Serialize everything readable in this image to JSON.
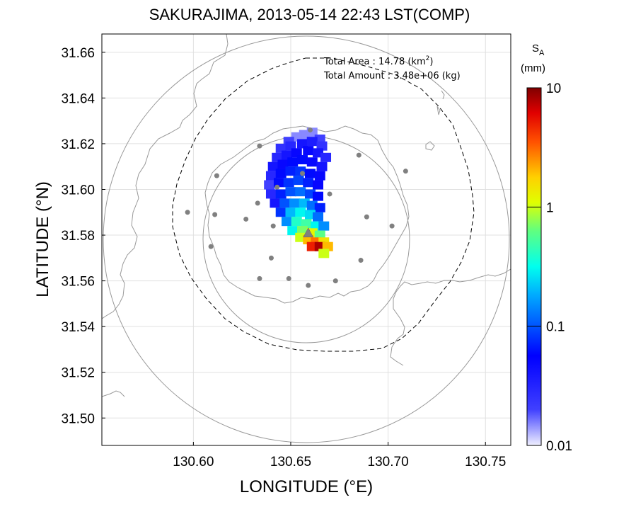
{
  "title": "SAKURAJIMA, 2013-05-14 22:43 LST(COMP)",
  "chart_data": {
    "type": "heatmap",
    "title": "SAKURAJIMA, 2013-05-14 22:43 LST(COMP)",
    "xlabel": "LONGITUDE (°E)",
    "ylabel": "LATITUDE (°N)",
    "xlim": [
      130.553,
      130.763
    ],
    "ylim": [
      31.488,
      31.668
    ],
    "x_ticks": [
      "130.60",
      "130.65",
      "130.70",
      "130.75"
    ],
    "y_ticks": [
      "31.66",
      "31.64",
      "31.62",
      "31.60",
      "31.58",
      "31.56",
      "31.54",
      "31.52",
      "31.50"
    ],
    "grid": true,
    "colorbar": {
      "label_main": "S",
      "label_sub": "A",
      "unit": "(mm)",
      "scale": "log",
      "range": [
        0.01,
        10
      ],
      "ticks": [
        "10",
        "1",
        "0.1",
        "0.01"
      ]
    },
    "annotations": {
      "area_label": "Total Area   : 14.78 (km",
      "area_sup": "2",
      "area_close": ")",
      "amount_label": "Total Amount : 3.48e+06 (kg)"
    },
    "vent": {
      "lon": 130.659,
      "lat": 31.581
    },
    "sites": [
      [
        130.634,
        31.619
      ],
      [
        130.66,
        31.626
      ],
      [
        130.685,
        31.615
      ],
      [
        130.612,
        31.606
      ],
      [
        130.656,
        31.607
      ],
      [
        130.709,
        31.608
      ],
      [
        130.643,
        31.601
      ],
      [
        130.67,
        31.598
      ],
      [
        130.597,
        31.59
      ],
      [
        130.611,
        31.589
      ],
      [
        130.633,
        31.594
      ],
      [
        130.627,
        31.587
      ],
      [
        130.689,
        31.588
      ],
      [
        130.641,
        31.584
      ],
      [
        130.702,
        31.584
      ],
      [
        130.609,
        31.575
      ],
      [
        130.64,
        31.57
      ],
      [
        130.686,
        31.569
      ],
      [
        130.634,
        31.561
      ],
      [
        130.649,
        31.561
      ],
      [
        130.659,
        31.558
      ],
      [
        130.673,
        31.56
      ]
    ],
    "plume_cells": [
      [
        130.661,
        31.625,
        0.015
      ],
      [
        130.657,
        31.624,
        0.015
      ],
      [
        130.653,
        31.623,
        0.015
      ],
      [
        130.649,
        31.621,
        0.02
      ],
      [
        130.665,
        31.622,
        0.02
      ],
      [
        130.645,
        31.618,
        0.025
      ],
      [
        130.65,
        31.619,
        0.03
      ],
      [
        130.656,
        31.62,
        0.04
      ],
      [
        130.661,
        31.621,
        0.035
      ],
      [
        130.666,
        31.619,
        0.025
      ],
      [
        130.643,
        31.614,
        0.03
      ],
      [
        130.648,
        31.615,
        0.04
      ],
      [
        130.653,
        31.616,
        0.05
      ],
      [
        130.659,
        31.617,
        0.05
      ],
      [
        130.664,
        31.616,
        0.04
      ],
      [
        130.668,
        31.614,
        0.03
      ],
      [
        130.641,
        31.61,
        0.04
      ],
      [
        130.646,
        31.611,
        0.05
      ],
      [
        130.651,
        31.612,
        0.06
      ],
      [
        130.656,
        31.613,
        0.06
      ],
      [
        130.661,
        31.612,
        0.05
      ],
      [
        130.666,
        31.61,
        0.04
      ],
      [
        130.64,
        31.606,
        0.03
      ],
      [
        130.645,
        31.607,
        0.06
      ],
      [
        130.65,
        31.608,
        0.07
      ],
      [
        130.655,
        31.608,
        0.08
      ],
      [
        130.66,
        31.607,
        0.06
      ],
      [
        130.665,
        31.606,
        0.05
      ],
      [
        130.639,
        31.602,
        0.02
      ],
      [
        130.644,
        31.603,
        0.06
      ],
      [
        130.649,
        31.603,
        0.08
      ],
      [
        130.654,
        31.604,
        0.09
      ],
      [
        130.659,
        31.603,
        0.07
      ],
      [
        130.664,
        31.602,
        0.05
      ],
      [
        130.64,
        31.598,
        0.03
      ],
      [
        130.645,
        31.598,
        0.07
      ],
      [
        130.65,
        31.599,
        0.1
      ],
      [
        130.655,
        31.599,
        0.12
      ],
      [
        130.66,
        31.598,
        0.09
      ],
      [
        130.664,
        31.597,
        0.06
      ],
      [
        130.642,
        31.594,
        0.04
      ],
      [
        130.647,
        31.594,
        0.1
      ],
      [
        130.652,
        31.594,
        0.15
      ],
      [
        130.657,
        31.594,
        0.2
      ],
      [
        130.661,
        31.593,
        0.12
      ],
      [
        130.665,
        31.592,
        0.07
      ],
      [
        130.645,
        31.59,
        0.08
      ],
      [
        130.65,
        31.59,
        0.2
      ],
      [
        130.655,
        31.59,
        0.3
      ],
      [
        130.66,
        31.589,
        0.25
      ],
      [
        130.664,
        31.588,
        0.12
      ],
      [
        130.648,
        31.586,
        0.15
      ],
      [
        130.653,
        31.586,
        0.4
      ],
      [
        130.658,
        31.585,
        0.5
      ],
      [
        130.663,
        31.584,
        0.3
      ],
      [
        130.667,
        31.584,
        0.15
      ],
      [
        130.651,
        31.582,
        0.3
      ],
      [
        130.656,
        31.582,
        0.7
      ],
      [
        130.661,
        31.581,
        1.2
      ],
      [
        130.665,
        31.58,
        0.6
      ],
      [
        130.655,
        31.579,
        1.0
      ],
      [
        130.659,
        31.578,
        2.0
      ],
      [
        130.663,
        31.577,
        3.0
      ],
      [
        130.667,
        31.577,
        1.5
      ],
      [
        130.661,
        31.575,
        5.0
      ],
      [
        130.665,
        31.575,
        8.0
      ],
      [
        130.669,
        31.575,
        2.0
      ],
      [
        130.667,
        31.572,
        1.0
      ]
    ],
    "colors": {
      "coast": "#999999",
      "circle": "#999999",
      "sites": "#808080",
      "grid": "#e0e0e0",
      "dash": "#000000"
    }
  }
}
